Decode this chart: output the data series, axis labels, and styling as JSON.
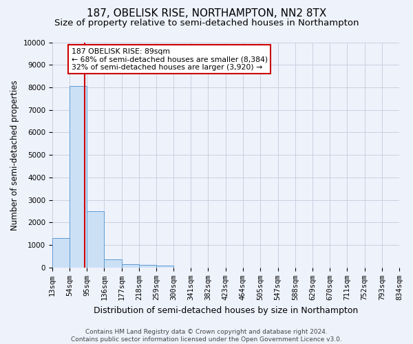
{
  "title": "187, OBELISK RISE, NORTHAMPTON, NN2 8TX",
  "subtitle": "Size of property relative to semi-detached houses in Northampton",
  "xlabel": "Distribution of semi-detached houses by size in Northampton",
  "ylabel": "Number of semi-detached properties",
  "footer_line1": "Contains HM Land Registry data © Crown copyright and database right 2024.",
  "footer_line2": "Contains public sector information licensed under the Open Government Licence v3.0.",
  "bin_edges": [
    13,
    54,
    95,
    136,
    177,
    218,
    259,
    300,
    341,
    382,
    423,
    464,
    505,
    547,
    588,
    629,
    670,
    711,
    752,
    793,
    834
  ],
  "bin_counts": [
    1300,
    8050,
    2500,
    380,
    150,
    120,
    80,
    0,
    0,
    0,
    0,
    0,
    0,
    0,
    0,
    0,
    0,
    0,
    0,
    0
  ],
  "property_size": 89,
  "property_label": "187 OBELISK RISE: 89sqm",
  "pct_smaller": 68,
  "n_smaller": 8384,
  "pct_larger": 32,
  "n_larger": 3920,
  "ylim": [
    0,
    10000
  ],
  "bar_color": "#cce0f5",
  "bar_edge_color": "#5b9bd5",
  "red_line_color": "#cc0000",
  "annotation_box_edge": "#cc0000",
  "background_color": "#eef2fb",
  "grid_color": "#c8d0e0",
  "title_fontsize": 11,
  "subtitle_fontsize": 9.5,
  "tick_label_fontsize": 7.5,
  "ylabel_fontsize": 8.5,
  "xlabel_fontsize": 9,
  "annotation_fontsize": 7.8,
  "footer_fontsize": 6.5
}
